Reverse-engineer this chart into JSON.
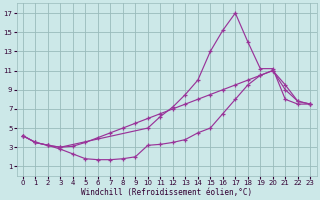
{
  "bg_color": "#cce8e8",
  "line_color": "#993399",
  "grid_color": "#99bbbb",
  "xlabel": "Windchill (Refroidissement éolien,°C)",
  "xlim": [
    -0.5,
    23.5
  ],
  "ylim": [
    0,
    18
  ],
  "xticks": [
    0,
    1,
    2,
    3,
    4,
    5,
    6,
    7,
    8,
    9,
    10,
    11,
    12,
    13,
    14,
    15,
    16,
    17,
    18,
    19,
    20,
    21,
    22,
    23
  ],
  "yticks": [
    1,
    3,
    5,
    7,
    9,
    11,
    13,
    15,
    17
  ],
  "line1_x": [
    0,
    1,
    2,
    3,
    10,
    11,
    12,
    13,
    14,
    15,
    16,
    17,
    18,
    19,
    20,
    21,
    22,
    23
  ],
  "line1_y": [
    4.2,
    3.5,
    3.2,
    3.0,
    5.0,
    6.2,
    7.2,
    8.5,
    10.0,
    13.0,
    15.2,
    17.0,
    14.0,
    11.2,
    11.2,
    8.0,
    7.5,
    7.5
  ],
  "line2_x": [
    0,
    1,
    2,
    3,
    4,
    5,
    6,
    7,
    8,
    9,
    10,
    11,
    12,
    13,
    14,
    15,
    16,
    17,
    18,
    19,
    20,
    21,
    22,
    23
  ],
  "line2_y": [
    4.2,
    3.5,
    3.2,
    3.0,
    3.1,
    3.5,
    4.0,
    4.5,
    5.0,
    5.5,
    6.0,
    6.5,
    7.0,
    7.5,
    8.0,
    8.5,
    9.0,
    9.5,
    10.0,
    10.5,
    11.0,
    9.5,
    7.8,
    7.5
  ],
  "line3_x": [
    0,
    1,
    2,
    3,
    4,
    5,
    6,
    7,
    8,
    9,
    10,
    11,
    12,
    13,
    14,
    15,
    16,
    17,
    18,
    19,
    20,
    21,
    22,
    23
  ],
  "line3_y": [
    4.2,
    3.5,
    3.2,
    2.8,
    2.3,
    1.8,
    1.7,
    1.7,
    1.8,
    2.0,
    3.2,
    3.3,
    3.5,
    3.8,
    4.5,
    5.0,
    6.5,
    8.0,
    9.5,
    10.5,
    11.0,
    9.0,
    7.8,
    7.5
  ],
  "figsize": [
    3.2,
    2.0
  ],
  "dpi": 100,
  "tick_labelsize": 5,
  "xlabel_fontsize": 5.5,
  "linewidth": 0.85,
  "markersize": 2.5
}
